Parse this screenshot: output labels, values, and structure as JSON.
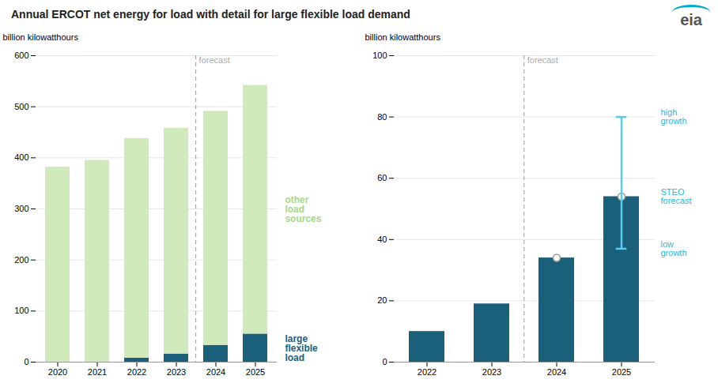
{
  "chart_data": [
    {
      "type": "bar",
      "stacked": true,
      "title": "Annual ERCOT net energy for load with detail for large flexible load demand",
      "ylabel": "billion kilowatthours",
      "categories": [
        "2020",
        "2021",
        "2022",
        "2023",
        "2024",
        "2025"
      ],
      "series": [
        {
          "name": "large\nflexible\nload",
          "color": "#1a607a",
          "label_color": "#1a607a",
          "values": [
            0,
            0,
            8,
            16,
            33,
            55
          ]
        },
        {
          "name": "other\nload\nsources",
          "color": "#d0eabc",
          "label_color": "#a8d887",
          "values": [
            382,
            395,
            430,
            442,
            458,
            487
          ]
        }
      ],
      "ylim": [
        0,
        600
      ],
      "yticks": [
        0,
        100,
        200,
        300,
        400,
        500,
        600
      ],
      "grid": true,
      "forecast": {
        "start": "2024",
        "text": "forecast",
        "color": "#aaaaaa"
      }
    },
    {
      "type": "bar",
      "ylabel": "billion kilowatthours",
      "categories": [
        "2022",
        "2023",
        "2024",
        "2025"
      ],
      "series": [
        {
          "type": "bar",
          "color": "#1a607a",
          "values": [
            10,
            19,
            34,
            54
          ]
        },
        {
          "type": "scatter",
          "marker": "circle",
          "color": "#999999",
          "values": [
            null,
            null,
            34,
            54
          ]
        }
      ],
      "error_bars": [
        {
          "category": "2025",
          "low": 37,
          "high": 80,
          "color": "#55ccee"
        }
      ],
      "ylim": [
        0,
        100
      ],
      "yticks": [
        0,
        20,
        40,
        60,
        80,
        100
      ],
      "grid": true,
      "forecast": {
        "start": "2024",
        "text": "forecast",
        "color": "#aaaaaa"
      },
      "annotations": [
        {
          "text": "high\ngrowth",
          "category": "2025",
          "y": 80,
          "color": "#29b8d8"
        },
        {
          "text": "STEO\nforecast",
          "category": "2025",
          "y": 54,
          "color": "#29b8d8"
        },
        {
          "text": "low\ngrowth",
          "category": "2025",
          "y": 37,
          "color": "#29b8d8"
        },
        {
          "text": "eia"
        }
      ]
    }
  ]
}
